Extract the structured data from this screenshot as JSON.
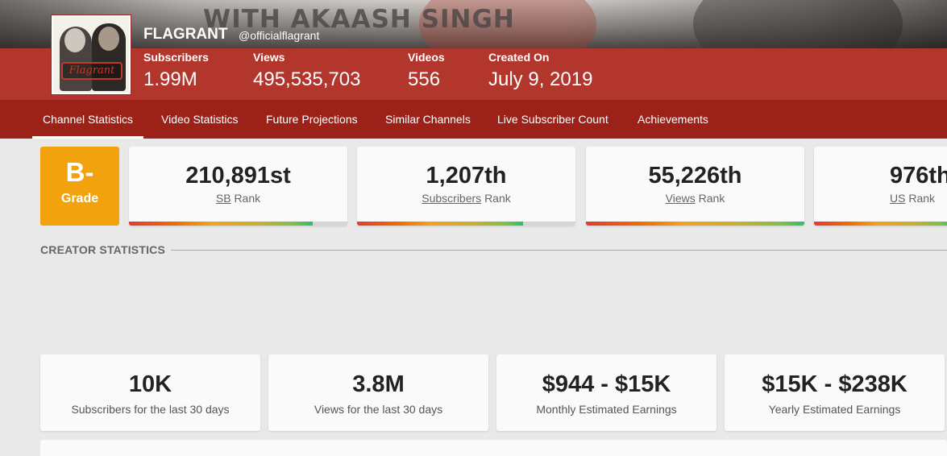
{
  "banner": {
    "text": "WITH AKAASH SINGH"
  },
  "channel": {
    "name": "FLAGRANT",
    "handle": "@officialflagrant",
    "avatar_logo_text": "Flagrant"
  },
  "stats": [
    {
      "label": "Subscribers",
      "value": "1.99M"
    },
    {
      "label": "Views",
      "value": "495,535,703"
    },
    {
      "label": "Videos",
      "value": "556"
    },
    {
      "label": "Created On",
      "value": "July 9, 2019"
    }
  ],
  "nav": [
    {
      "label": "Channel Statistics",
      "active": true
    },
    {
      "label": "Video Statistics"
    },
    {
      "label": "Future Projections"
    },
    {
      "label": "Similar Channels"
    },
    {
      "label": "Live Subscriber Count"
    },
    {
      "label": "Achievements"
    }
  ],
  "grade": {
    "value": "B-",
    "label": "Grade",
    "color": "#f1a20c"
  },
  "ranks": [
    {
      "value": "210,891st",
      "link": "SB",
      "suffix": "Rank",
      "progress": 0.84
    },
    {
      "value": "1,207th",
      "link": "Subscribers",
      "suffix": "Rank",
      "progress": 0.76
    },
    {
      "value": "55,226th",
      "link": "Views",
      "suffix": "Rank",
      "progress": 1.0
    },
    {
      "value": "976th",
      "link": "US",
      "suffix": "Rank",
      "progress": 1.0
    }
  ],
  "section": {
    "title": "CREATOR STATISTICS"
  },
  "summary": [
    {
      "value": "10K",
      "label": "Subscribers for the last 30 days"
    },
    {
      "value": "3.8M",
      "label": "Views for the last 30 days"
    },
    {
      "value": "$944 - $15K",
      "label": "Monthly Estimated Earnings"
    },
    {
      "value": "$15K - $238K",
      "label": "Yearly Estimated Earnings"
    }
  ],
  "colors": {
    "brand_red": "#b3362c",
    "nav_red": "#9c2219",
    "grade_orange": "#f1a20c"
  }
}
